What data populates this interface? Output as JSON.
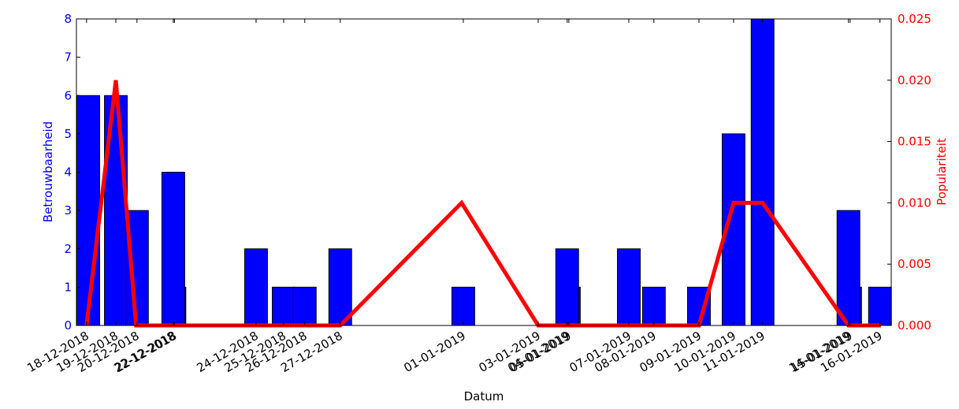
{
  "chart_data": {
    "type": "bar",
    "xlabel": "Datum",
    "ylabel": "Betrouwbaarheid",
    "y2label": "Populariteit",
    "xlim": [
      -0.36,
      28.58
    ],
    "ylim": [
      0,
      8
    ],
    "y2lim": [
      0,
      0.025
    ],
    "yticks": [
      0,
      1,
      2,
      3,
      4,
      5,
      6,
      7,
      8
    ],
    "y2ticks": [
      {
        "value": 0,
        "label": "0.000"
      },
      {
        "value": 0.005,
        "label": "0.005"
      },
      {
        "value": 0.01,
        "label": "0.010"
      },
      {
        "value": 0.015,
        "label": "0.015"
      },
      {
        "value": 0.02,
        "label": "0.020"
      },
      {
        "value": 0.025,
        "label": "0.025"
      }
    ],
    "xticks": [
      {
        "value": 0,
        "label": "18-12-2018"
      },
      {
        "value": 1.04,
        "label": "19-12-2018"
      },
      {
        "value": 1.79,
        "label": "20-12-2018"
      },
      {
        "value": 3.08,
        "label": "22-12-2018"
      },
      {
        "value": 3.12,
        "label": "22-12-2018"
      },
      {
        "value": 6.02,
        "label": "24-12-2018"
      },
      {
        "value": 7.0,
        "label": "25-12-2018"
      },
      {
        "value": 7.75,
        "label": "26-12-2018"
      },
      {
        "value": 9.01,
        "label": "27-12-2018"
      },
      {
        "value": 13.38,
        "label": "01-01-2019"
      },
      {
        "value": 16.04,
        "label": "03-01-2019"
      },
      {
        "value": 17.07,
        "label": "04-01-2019"
      },
      {
        "value": 17.13,
        "label": "05-01-2019"
      },
      {
        "value": 19.26,
        "label": "07-01-2019"
      },
      {
        "value": 20.15,
        "label": "08-01-2019"
      },
      {
        "value": 21.75,
        "label": "09-01-2019"
      },
      {
        "value": 22.98,
        "label": "10-01-2019"
      },
      {
        "value": 24.01,
        "label": "11-01-2019"
      },
      {
        "value": 27.06,
        "label": "14-01-2019"
      },
      {
        "value": 27.12,
        "label": "15-01-2019"
      },
      {
        "value": 28.18,
        "label": "16-01-2019"
      }
    ],
    "series": [
      {
        "type": "bar",
        "color": "#0000ff",
        "x": [
          0.06,
          1.04,
          1.79,
          3.12,
          3.08,
          6.02,
          7.0,
          7.75,
          9.01,
          13.38,
          17.13,
          17.07,
          19.26,
          20.15,
          21.75,
          22.98,
          24.01,
          27.12,
          27.06,
          28.18
        ],
        "values": [
          6,
          6,
          3,
          1,
          4,
          2,
          1,
          1,
          2,
          1,
          1,
          2,
          2,
          1,
          1,
          5,
          8,
          1,
          3,
          1
        ]
      },
      {
        "type": "line",
        "axis": "y2",
        "color": "#ff0000",
        "x": [
          0,
          1.04,
          1.76,
          3.08,
          6.02,
          7.0,
          7.75,
          9.01,
          13.32,
          16.04,
          17.07,
          19.26,
          20.15,
          21.75,
          22.98,
          24.01,
          27.06,
          28.21
        ],
        "values": [
          0,
          0.02,
          0,
          0,
          0,
          0,
          0,
          0,
          0.01,
          0,
          0,
          0,
          0,
          0,
          0.01,
          0.01,
          0,
          0
        ]
      }
    ]
  }
}
